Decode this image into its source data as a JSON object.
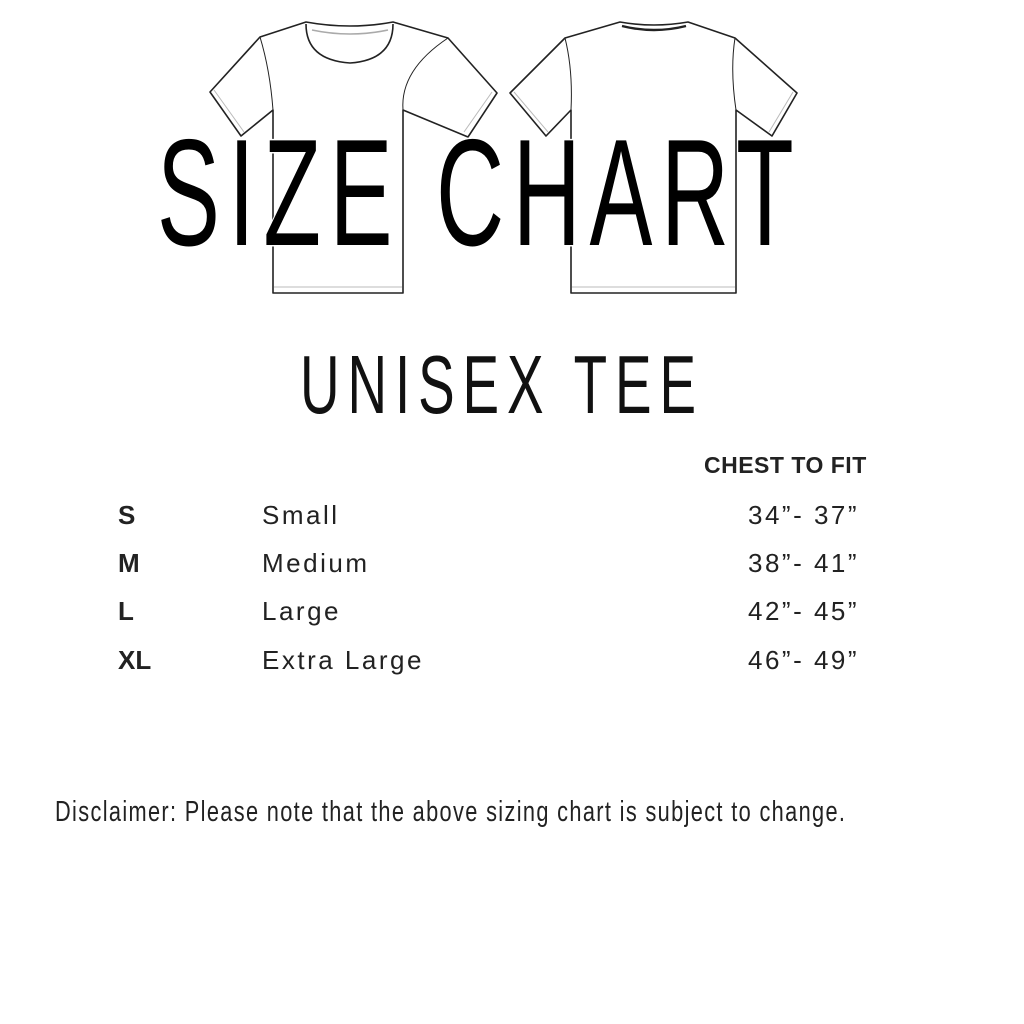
{
  "title": "SIZE CHART",
  "subtitle": "UNISEX TEE",
  "table": {
    "header": "CHEST TO FIT",
    "rows": [
      {
        "code": "S",
        "name": "Small",
        "chest": "34”- 37”"
      },
      {
        "code": "M",
        "name": "Medium",
        "chest": "38”- 41”"
      },
      {
        "code": "L",
        "name": "Large",
        "chest": "42”- 45”"
      },
      {
        "code": "XL",
        "name": "Extra Large",
        "chest": "46”- 49”"
      }
    ]
  },
  "disclaimer": "Disclaimer: Please note that the above sizing chart is subject to change.",
  "icons": [
    "tshirt-front-icon",
    "tshirt-back-icon"
  ]
}
